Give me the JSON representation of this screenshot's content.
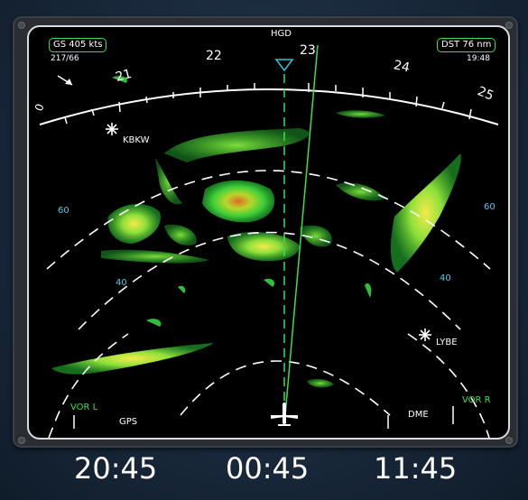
{
  "display": {
    "waypoint_top": "HGD",
    "ground_speed": "GS  405  kts",
    "wind": "217/66",
    "distance": "DST  76 nm",
    "time_small": "19:48",
    "compass_labels": [
      "0",
      "21",
      "22",
      "23",
      "24",
      "25"
    ],
    "waypoints": {
      "left": "KBKW",
      "right": "LYBE"
    },
    "range_labels": {
      "outer_left": "60",
      "outer_right": "60",
      "inner_left": "40",
      "inner_right": "40"
    },
    "nav_sources": {
      "vor_left": "VOR L",
      "gps": "GPS",
      "dme": "DME",
      "vor_right": "VOR R"
    },
    "colors": {
      "bezel": "#2a2e33",
      "screen": "#000000",
      "accent_green": "#39e04a",
      "range_cyan": "#5ac8e8",
      "heading_bug": "#33c4d8"
    }
  },
  "clocks": [
    "20:45",
    "00:45",
    "11:45"
  ]
}
